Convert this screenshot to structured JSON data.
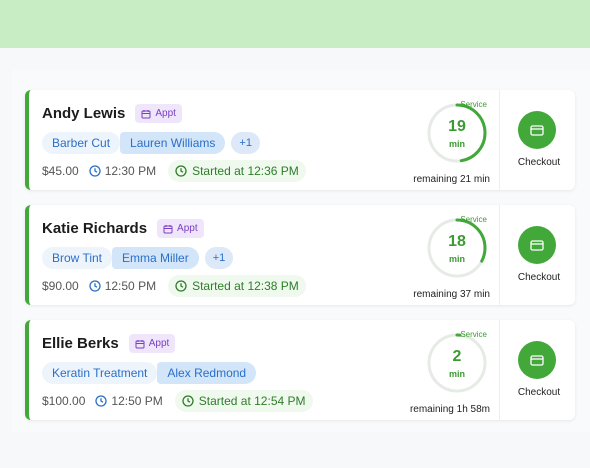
{
  "cards": [
    {
      "name": "Andy Lewis",
      "badge": "Appt",
      "service": "Barber Cut",
      "staff": "Lauren Williams",
      "extra": "+1",
      "price": "$45.00",
      "time": "12:30 PM",
      "started": "Started at 12:36 PM",
      "ring_label": "Service",
      "minutes": "19",
      "unit": "min",
      "remaining": "remaining 21 min",
      "action": "Checkout"
    },
    {
      "name": "Katie Richards",
      "badge": "Appt",
      "service": "Brow Tint",
      "staff": "Emma Miller",
      "extra": "+1",
      "price": "$90.00",
      "time": "12:50 PM",
      "started": "Started at 12:38 PM",
      "ring_label": "Service",
      "minutes": "18",
      "unit": "min",
      "remaining": "remaining 37 min",
      "action": "Checkout"
    },
    {
      "name": "Ellie Berks",
      "badge": "Appt",
      "service": "Keratin Treatment",
      "staff": "Alex Redmond",
      "price": "$100.00",
      "time": "12:50 PM",
      "started": "Started at 12:54 PM",
      "ring_label": "Service",
      "minutes": "2",
      "unit": "min",
      "remaining": "remaining 1h 58m",
      "action": "Checkout"
    }
  ]
}
